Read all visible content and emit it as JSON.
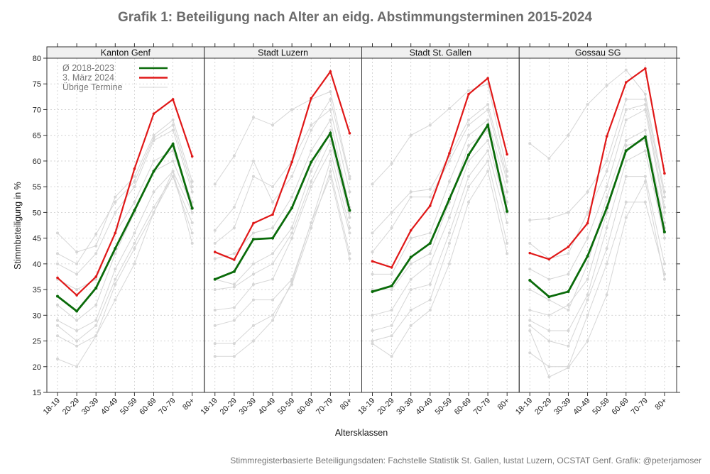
{
  "chart_data": {
    "type": "line",
    "title": "Grafik 1: Beteiligung nach Alter an eidg. Abstimmungsterminen 2015-2024",
    "xlabel": "Altersklassen",
    "ylabel": "Stimmbeteiligung in %",
    "ylim": [
      15,
      80
    ],
    "yticks": [
      15,
      20,
      25,
      30,
      35,
      40,
      45,
      50,
      55,
      60,
      65,
      70,
      75,
      80
    ],
    "grid": true,
    "legend_position": "top-left",
    "categories": [
      "18-19",
      "20-29",
      "30-39",
      "40-49",
      "50-59",
      "60-69",
      "70-79",
      "80+"
    ],
    "legend": [
      {
        "name": "Ø 2018-2023",
        "color": "#0a6b0a"
      },
      {
        "name": "3. März 2024",
        "color": "#e01818"
      },
      {
        "name": "Übrige Termine",
        "color": "#d4d4d4"
      }
    ],
    "panels": [
      {
        "name": "Kanton Genf",
        "avg": [
          33.7,
          30.8,
          35.3,
          43,
          50.4,
          58,
          63.3,
          50.8
        ],
        "march2024": [
          37.3,
          33.9,
          37.5,
          46,
          58.5,
          69.2,
          72,
          60.9
        ],
        "others": [
          [
            46,
            42.3,
            43.5,
            53,
            57,
            65,
            68,
            56
          ],
          [
            42,
            40,
            45.8,
            52,
            56,
            64.5,
            67,
            55
          ],
          [
            40,
            38,
            42,
            50,
            55,
            64,
            66,
            54
          ],
          [
            37,
            35,
            37,
            46,
            52,
            60,
            62,
            52
          ],
          [
            32,
            29,
            32,
            42,
            50,
            58,
            60,
            51
          ],
          [
            29,
            27,
            29,
            39,
            46,
            54,
            58,
            50
          ],
          [
            28,
            25,
            28,
            37,
            44,
            51,
            57,
            48
          ],
          [
            26,
            24,
            26,
            33,
            40,
            50,
            57,
            46
          ],
          [
            21.5,
            20,
            26,
            36,
            43,
            50,
            58,
            44
          ]
        ]
      },
      {
        "name": "Stadt Luzern",
        "avg": [
          37,
          38.5,
          44.8,
          45,
          50.9,
          59.8,
          65.4,
          50.4
        ],
        "march2024": [
          42.3,
          40.8,
          47.9,
          49.6,
          59.8,
          72.2,
          77.4,
          65.4
        ],
        "others": [
          [
            55.5,
            61,
            68.5,
            67,
            70,
            72,
            73.5,
            57
          ],
          [
            46.5,
            51,
            60,
            52,
            57,
            66,
            72,
            56.5
          ],
          [
            44,
            47,
            57,
            55,
            60,
            67,
            70,
            54
          ],
          [
            41,
            42,
            46,
            47,
            53,
            62,
            68,
            51
          ],
          [
            37,
            36,
            40,
            42,
            47,
            58,
            66,
            50
          ],
          [
            35,
            35.5,
            38,
            40,
            46,
            56,
            64,
            49
          ],
          [
            31,
            31.5,
            36,
            37,
            45,
            55,
            62,
            47
          ],
          [
            28,
            29,
            33,
            33,
            37,
            48,
            60,
            46
          ],
          [
            24.5,
            24.5,
            28,
            30,
            36,
            47,
            58,
            42
          ],
          [
            22,
            22,
            25,
            29,
            36.5,
            48,
            57,
            41
          ]
        ]
      },
      {
        "name": "Stadt St. Gallen",
        "avg": [
          34.6,
          35.7,
          41.3,
          44,
          52.6,
          61.2,
          67,
          50.2
        ],
        "march2024": [
          40.5,
          39.3,
          46.5,
          51.3,
          61.5,
          73,
          76.1,
          61.3
        ],
        "others": [
          [
            55.5,
            59.5,
            65,
            67,
            70.2,
            73.7,
            75,
            58
          ],
          [
            46,
            50,
            54,
            54.5,
            61,
            68,
            71,
            57
          ],
          [
            42.3,
            47,
            53,
            53,
            60,
            67,
            70,
            56
          ],
          [
            38,
            38,
            45,
            46,
            56,
            65,
            68,
            54
          ],
          [
            35,
            35,
            40,
            42,
            52,
            63,
            66,
            52
          ],
          [
            30,
            31,
            37,
            40,
            49,
            60,
            64,
            50
          ],
          [
            27,
            28,
            35,
            36,
            46,
            57,
            62,
            48
          ],
          [
            25,
            26,
            31,
            33,
            44,
            55,
            60,
            44
          ],
          [
            24.5,
            22,
            28,
            31,
            40,
            52,
            58,
            42
          ]
        ]
      },
      {
        "name": "Gossau SG",
        "avg": [
          36.8,
          33.6,
          34.6,
          41.5,
          50.9,
          62,
          64.7,
          46.2
        ],
        "march2024": [
          42.1,
          40.9,
          43.3,
          47.9,
          64.8,
          75.3,
          78,
          57.6
        ],
        "others": [
          [
            63.4,
            60.5,
            65,
            71,
            74.7,
            77.7,
            73,
            54
          ],
          [
            48.5,
            48.8,
            50,
            54,
            60,
            72,
            72,
            53
          ],
          [
            44,
            41,
            42,
            50,
            58,
            70,
            71,
            51
          ],
          [
            39,
            37,
            38,
            45,
            55,
            68,
            70,
            50
          ],
          [
            35,
            33,
            31,
            40,
            53,
            64,
            66,
            48
          ],
          [
            31,
            30,
            32,
            37,
            50,
            63,
            64,
            47
          ],
          [
            29,
            27,
            27,
            34,
            47,
            60,
            62,
            45
          ],
          [
            28,
            25,
            24,
            33,
            43,
            57,
            57,
            40
          ],
          [
            22.7,
            20,
            20,
            30,
            40,
            52,
            52,
            38
          ],
          [
            27,
            18,
            19.8,
            25,
            34,
            49,
            56,
            37
          ]
        ]
      }
    ],
    "footer": "Stimmregisterbasierte Beteiligungsdaten: Fachstelle Statistik St. Gallen, lustat Luzern, OCSTAT Genf. Grafik: @peterjamoser"
  }
}
